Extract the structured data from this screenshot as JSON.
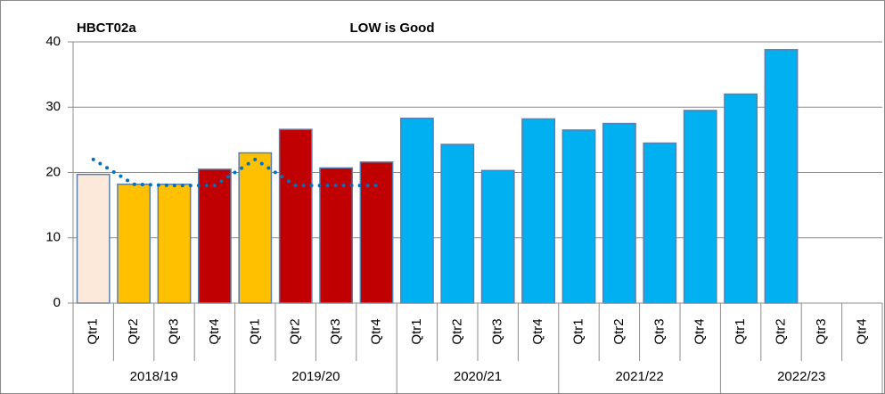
{
  "chart_data": {
    "type": "bar",
    "title": "HBCT02a",
    "subtitle": "LOW is Good",
    "groups": [
      {
        "name": "2018/19",
        "categories": [
          "Qtr1",
          "Qtr2",
          "Qtr3",
          "Qtr4"
        ]
      },
      {
        "name": "2019/20",
        "categories": [
          "Qtr1",
          "Qtr2",
          "Qtr3",
          "Qtr4"
        ]
      },
      {
        "name": "2020/21",
        "categories": [
          "Qtr1",
          "Qtr2",
          "Qtr3",
          "Qtr4"
        ]
      },
      {
        "name": "2021/22",
        "categories": [
          "Qtr1",
          "Qtr2",
          "Qtr3",
          "Qtr4"
        ]
      },
      {
        "name": "2022/23",
        "categories": [
          "Qtr1",
          "Qtr2",
          "Qtr3",
          "Qtr4"
        ]
      }
    ],
    "series": [
      {
        "type": "bar",
        "values": [
          19.7,
          18.2,
          18.2,
          20.5,
          23,
          26.6,
          20.7,
          21.6,
          28.3,
          24.3,
          20.3,
          28.2,
          26.5,
          27.5,
          24.5,
          29.5,
          32,
          38.8,
          null,
          null
        ],
        "colors": [
          "#fde9d9",
          "#ffc000",
          "#ffc000",
          "#c00000",
          "#ffc000",
          "#c00000",
          "#c00000",
          "#c00000",
          "#00b0f0",
          "#00b0f0",
          "#00b0f0",
          "#00b0f0",
          "#00b0f0",
          "#00b0f0",
          "#00b0f0",
          "#00b0f0",
          "#00b0f0",
          "#00b0f0",
          "#00b0f0",
          "#00b0f0"
        ],
        "edgecolor": "#5b7fae"
      },
      {
        "type": "line",
        "style": "dotted",
        "color": "#0070c0",
        "values": [
          22,
          18.2,
          18,
          18,
          22,
          18,
          18,
          18,
          null,
          null,
          null,
          null,
          null,
          null,
          null,
          null,
          null,
          null,
          null,
          null
        ]
      }
    ],
    "ylim": [
      0,
      40
    ],
    "yticks": [
      0,
      10,
      20,
      30,
      40
    ],
    "grid": true
  }
}
